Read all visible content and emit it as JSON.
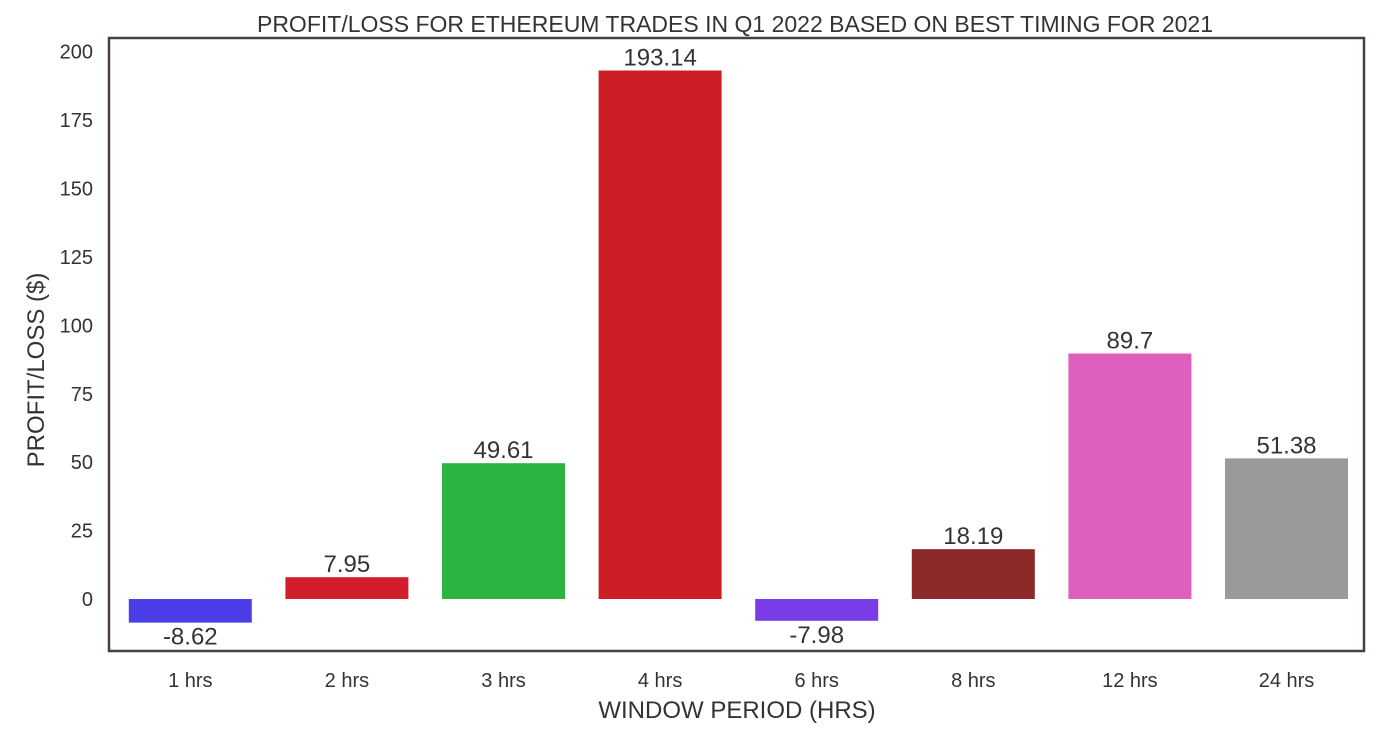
{
  "chart_data": {
    "type": "bar",
    "title": "PROFIT/LOSS FOR ETHEREUM TRADES IN Q1 2022 BASED ON BEST TIMING FOR 2021",
    "xlabel": "WINDOW PERIOD (HRS)",
    "ylabel": "PROFIT/LOSS ($)",
    "categories": [
      "1 hrs",
      "2 hrs",
      "3 hrs",
      "4 hrs",
      "6 hrs",
      "8 hrs",
      "12 hrs",
      "24 hrs"
    ],
    "values": [
      -8.62,
      7.95,
      49.61,
      193.14,
      -7.98,
      18.19,
      89.7,
      51.38
    ],
    "value_labels": [
      "-8.62",
      "7.95",
      "49.61",
      "193.14",
      "-7.98",
      "18.19",
      "89.7",
      "51.38"
    ],
    "bar_colors": [
      "#4b3ee8",
      "#d21e2a",
      "#2bb440",
      "#cc1e24",
      "#7a3ce8",
      "#8b2a28",
      "#de5fbe",
      "#9a9a9a"
    ],
    "ylim": [
      -19,
      205
    ],
    "yticks": [
      0,
      25,
      50,
      75,
      100,
      125,
      150,
      175,
      200
    ],
    "grid": false,
    "legend": "none",
    "frame_color": "#4a3f3a"
  }
}
